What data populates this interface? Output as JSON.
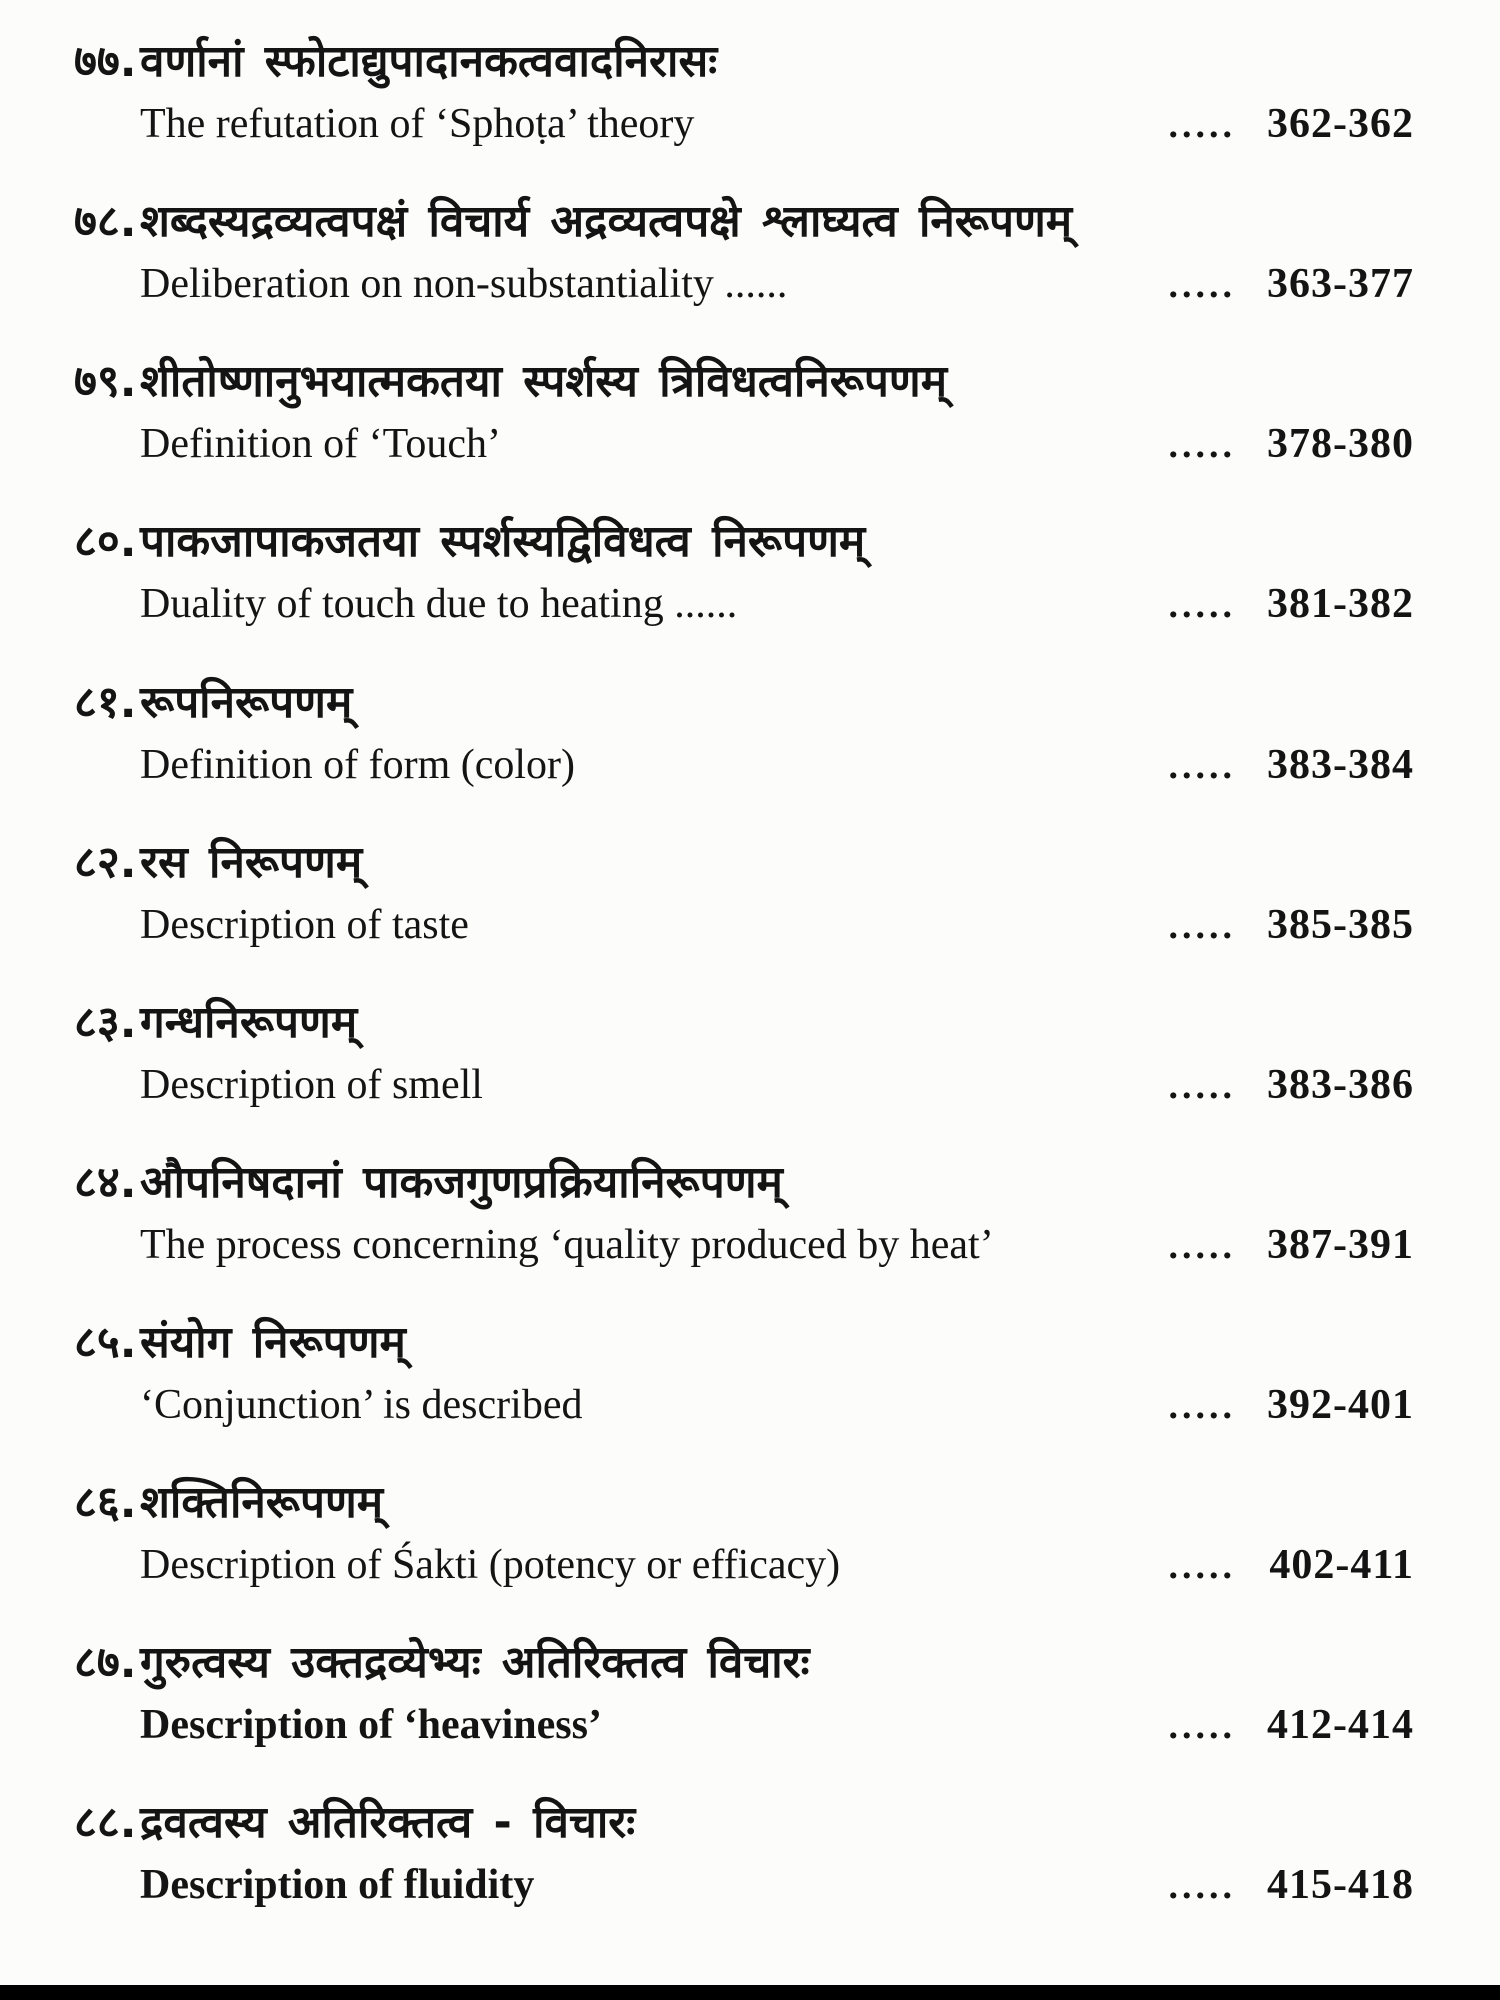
{
  "page": {
    "background_color": "#fcfcfa",
    "text_color": "#141414",
    "footer_bar_color": "#000000",
    "entries": [
      {
        "num": "७७.",
        "sanskrit": "वर्णानां स्फोटाद्युपादानकत्ववादनिरासः",
        "english": "The refutation of ‘Sphoṭa’ theory",
        "dots": ".....",
        "pages": "362-362"
      },
      {
        "num": "७८.",
        "sanskrit": "शब्दस्यद्रव्यत्वपक्षं विचार्य अद्रव्यत्वपक्षे श्लाघ्यत्व निरूपणम्",
        "english": "Deliberation on non-substantiality ......",
        "dots": ".....",
        "pages": "363-377"
      },
      {
        "num": "७९.",
        "sanskrit": "शीतोष्णानुभयात्मकतया स्पर्शस्य त्रिविधत्वनिरूपणम्",
        "english": "Definition of ‘Touch’",
        "dots": ".....",
        "pages": "378-380"
      },
      {
        "num": "८०.",
        "sanskrit": "पाकजापाकजतया स्पर्शस्यद्विविधत्व निरूपणम्",
        "english": "Duality of touch due to heating ......",
        "dots": ".....",
        "pages": "381-382"
      },
      {
        "num": "८१.",
        "sanskrit": "रूपनिरूपणम्",
        "english": "Definition of form (color)",
        "dots": ".....",
        "pages": "383-384"
      },
      {
        "num": "८२.",
        "sanskrit": "रस निरूपणम्",
        "english": "Description of taste",
        "dots": ".....",
        "pages": "385-385"
      },
      {
        "num": "८३.",
        "sanskrit": "गन्धनिरूपणम्",
        "english": "Description of smell",
        "dots": ".....",
        "pages": "383-386"
      },
      {
        "num": "८४.",
        "sanskrit": "औपनिषदानां पाकजगुणप्रक्रियानिरूपणम्",
        "english": "The process concerning ‘quality produced by heat’",
        "dots": ".....",
        "pages": "387-391"
      },
      {
        "num": "८५.",
        "sanskrit": "संयोग निरूपणम्",
        "english": "‘Conjunction’ is described",
        "dots": ".....",
        "pages": "392-401"
      },
      {
        "num": "८६.",
        "sanskrit": "शक्तिनिरूपणम्",
        "english": "Description of Śakti (potency or efficacy)",
        "dots": ".....",
        "pages": "402-411"
      },
      {
        "num": "८७.",
        "sanskrit": "गुरुत्वस्य उक्तद्रव्येभ्यः अतिरिक्तत्व विचारः",
        "english": "Description of ‘heaviness’",
        "dots": ".....",
        "pages": "412-414"
      },
      {
        "num": "८८.",
        "sanskrit": "द्रवत्वस्य अतिरिक्तत्व - विचारः",
        "english": "Description of fluidity",
        "dots": ".....",
        "pages": "415-418"
      }
    ]
  }
}
